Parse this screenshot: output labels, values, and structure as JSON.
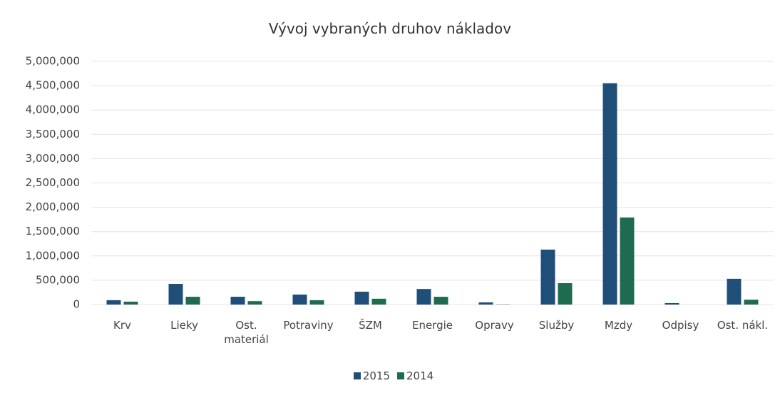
{
  "chart_data": {
    "type": "bar",
    "title": "Vývoj vybraných druhov nákladov",
    "categories": [
      "Krv",
      "Lieky",
      "Ost. materiál",
      "Potraviny",
      "ŠZM",
      "Energie",
      "Opravy",
      "Služby",
      "Mzdy",
      "Odpisy",
      "Ost. nákl."
    ],
    "series": [
      {
        "name": "2015",
        "color": "#1f4e79",
        "values": [
          90000,
          425000,
          160000,
          205000,
          265000,
          320000,
          45000,
          1130000,
          4550000,
          30000,
          530000
        ]
      },
      {
        "name": "2014",
        "color": "#1f6b50",
        "values": [
          60000,
          160000,
          70000,
          90000,
          120000,
          160000,
          5000,
          440000,
          1790000,
          0,
          100000
        ]
      }
    ],
    "ylim": [
      0,
      5000000
    ],
    "yticks": [
      0,
      {
        "value": 500000,
        "label": "500,000"
      },
      {
        "value": 1000000,
        "label": "1,000,000"
      },
      {
        "value": 1500000,
        "label": "1,500,000"
      },
      {
        "value": 2000000,
        "label": "2,000,000"
      },
      {
        "value": 2500000,
        "label": "2,500,000"
      },
      {
        "value": 3000000,
        "label": "3,000,000"
      },
      {
        "value": 3500000,
        "label": "3,500,000"
      },
      {
        "value": 4000000,
        "label": "4,000,000"
      },
      {
        "value": 4500000,
        "label": "4,500,000"
      },
      {
        "value": 5000000,
        "label": "5,000,000"
      }
    ],
    "grid": true,
    "legend": "bottom"
  }
}
